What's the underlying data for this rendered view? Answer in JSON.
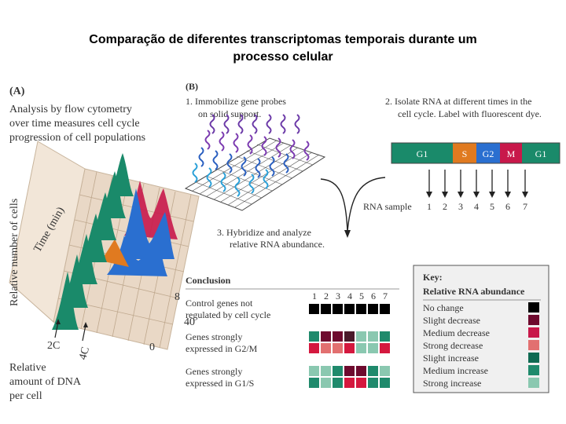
{
  "title_line1": "Comparação de diferentes transcriptomas temporais durante um",
  "title_line2": "processo celular",
  "panelA": {
    "label": "(A)",
    "caption": [
      "Analysis by flow cytometry",
      "over time measures cell cycle",
      "progression of cell populations"
    ],
    "y_axis": "Relative number of cells",
    "time_axis": "Time (min)",
    "time_ticks": [
      "8",
      "40",
      "0"
    ],
    "dna_ticks": [
      "2C",
      "4C"
    ],
    "x_axis": [
      "Relative",
      "amount of DNA",
      "per cell"
    ]
  },
  "panelB": {
    "label": "(B)",
    "step1": [
      "1. Immobilize gene probes",
      "on solid support."
    ],
    "step2": [
      "2. Isolate RNA at different times in the",
      "cell cycle. Label with fluorescent dye."
    ],
    "phases": [
      {
        "name": "G1",
        "color": "#1a8a6a"
      },
      {
        "name": "S",
        "color": "#e07a20"
      },
      {
        "name": "G2",
        "color": "#2a6fd0"
      },
      {
        "name": "M",
        "color": "#c8184a"
      },
      {
        "name": "G1",
        "color": "#1a8a6a"
      }
    ],
    "rna_sample_label": "RNA sample",
    "samples": [
      "1",
      "2",
      "3",
      "4",
      "5",
      "6",
      "7"
    ],
    "step3": [
      "3. Hybridize and analyze",
      "relative RNA abundance."
    ]
  },
  "conclusion": {
    "heading": "Conclusion",
    "columns": [
      "1",
      "2",
      "3",
      "4",
      "5",
      "6",
      "7"
    ],
    "rows": [
      {
        "label": [
          "Control genes not",
          "regulated by cell cycle"
        ],
        "grid": [
          [
            "#000000",
            "#000000",
            "#000000",
            "#000000",
            "#000000",
            "#000000",
            "#000000"
          ]
        ]
      },
      {
        "label": [
          "Genes strongly",
          "expressed in G2/M"
        ],
        "grid": [
          [
            "#1f8a6c",
            "#6e0a2e",
            "#6e0a2e",
            "#4a1a2a",
            "#8ac8b0",
            "#8ac8b0",
            "#1f8a6c"
          ],
          [
            "#d4183e",
            "#e27070",
            "#e27070",
            "#d4183e",
            "#8ac8b0",
            "#8ac8b0",
            "#d4183e"
          ]
        ]
      },
      {
        "label": [
          "Genes strongly",
          "expressed in G1/S"
        ],
        "grid": [
          [
            "#8ac8b0",
            "#8ac8b0",
            "#1f8a6c",
            "#6e0a2e",
            "#6e0a2e",
            "#1f8a6c",
            "#8ac8b0"
          ],
          [
            "#1f8a6c",
            "#8ac8b0",
            "#1f8a6c",
            "#d4183e",
            "#d4183e",
            "#1f8a6c",
            "#1f8a6c"
          ]
        ]
      }
    ]
  },
  "key": {
    "heading": "Key:",
    "subheading": "Relative RNA abundance",
    "items": [
      {
        "label": "No change",
        "color": "#000000"
      },
      {
        "label": "Slight decrease",
        "color": "#6e0a2e"
      },
      {
        "label": "Medium decrease",
        "color": "#c8184a"
      },
      {
        "label": "Strong decrease",
        "color": "#e27070"
      },
      {
        "label": "Slight increase",
        "color": "#0f6a52"
      },
      {
        "label": "Medium increase",
        "color": "#1f8a6c"
      },
      {
        "label": "Strong increase",
        "color": "#8ac8b0"
      }
    ]
  }
}
